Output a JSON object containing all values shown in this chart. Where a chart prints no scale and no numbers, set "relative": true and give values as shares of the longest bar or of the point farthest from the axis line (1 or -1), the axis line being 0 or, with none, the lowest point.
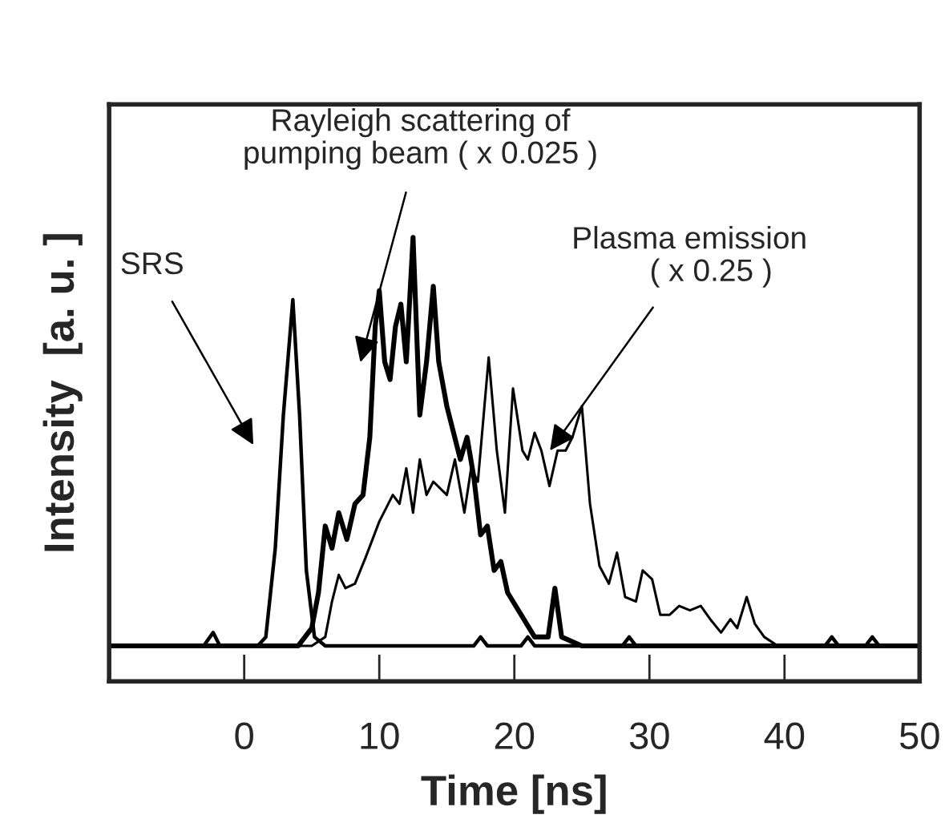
{
  "chart_data": {
    "type": "line",
    "xlabel": "Time [ns]",
    "ylabel": "Intensity  [a. u. ]",
    "relative": true,
    "xlim": [
      -10,
      50
    ],
    "xticks": [
      0,
      10,
      20,
      30,
      40,
      50
    ],
    "grid": false,
    "legend": false,
    "marker": "none",
    "line_style": "solid",
    "series": [
      {
        "color": "#000000",
        "x": [
          -10,
          -3,
          -2.3,
          -1.8,
          1,
          1.6,
          2.3,
          2.9,
          3.6,
          4.1,
          4.6,
          5.2,
          6,
          17,
          17.5,
          18,
          20.5,
          21,
          21.5,
          28,
          28.5,
          29,
          43,
          43.5,
          44,
          46,
          46.5,
          47,
          50
        ],
        "values": [
          0.08,
          0.08,
          0.11,
          0.08,
          0.08,
          0.1,
          0.3,
          0.6,
          0.86,
          0.6,
          0.25,
          0.1,
          0.08,
          0.08,
          0.1,
          0.08,
          0.08,
          0.1,
          0.08,
          0.08,
          0.1,
          0.08,
          0.08,
          0.1,
          0.08,
          0.08,
          0.1,
          0.08,
          0.08
        ]
      },
      {
        "color": "#000000",
        "x": [
          -10,
          -5,
          0,
          4,
          5,
          5.5,
          6,
          6.5,
          7,
          7.6,
          8.2,
          8.8,
          9.3,
          9.7,
          10,
          10.4,
          10.8,
          11.2,
          11.6,
          12,
          12.5,
          13,
          13.5,
          14,
          14.4,
          15,
          15.5,
          16,
          16.5,
          17,
          17.5,
          18,
          18.5,
          19,
          19.5,
          20.5,
          21.5,
          22.5,
          23,
          23.5,
          25,
          50
        ],
        "values": [
          0.08,
          0.08,
          0.08,
          0.08,
          0.12,
          0.2,
          0.35,
          0.3,
          0.38,
          0.32,
          0.4,
          0.42,
          0.55,
          0.8,
          0.88,
          0.72,
          0.68,
          0.8,
          0.85,
          0.72,
          1.0,
          0.6,
          0.72,
          0.89,
          0.72,
          0.62,
          0.56,
          0.5,
          0.55,
          0.46,
          0.33,
          0.35,
          0.25,
          0.27,
          0.2,
          0.15,
          0.1,
          0.1,
          0.21,
          0.1,
          0.08,
          0.08
        ]
      },
      {
        "color": "#000000",
        "x": [
          -10,
          5,
          6,
          6.5,
          7,
          7.5,
          8.2,
          9,
          10,
          11,
          11.5,
          12,
          12.5,
          13,
          13.5,
          14,
          15,
          15.6,
          16.3,
          16.8,
          17.3,
          18.1,
          18.7,
          19.3,
          19.9,
          20.6,
          21,
          21.5,
          22,
          22.6,
          23.2,
          23.8,
          24.3,
          25,
          25.6,
          26.3,
          27,
          27.6,
          28.2,
          29,
          29.5,
          30.2,
          30.8,
          31.5,
          32.2,
          33,
          33.8,
          34.5,
          35.3,
          36,
          36.5,
          37.2,
          37.8,
          38.5,
          39.5,
          50
        ],
        "values": [
          0.08,
          0.08,
          0.1,
          0.18,
          0.24,
          0.21,
          0.22,
          0.28,
          0.36,
          0.42,
          0.4,
          0.48,
          0.38,
          0.5,
          0.42,
          0.45,
          0.42,
          0.5,
          0.38,
          0.48,
          0.45,
          0.73,
          0.52,
          0.38,
          0.66,
          0.52,
          0.5,
          0.56,
          0.52,
          0.44,
          0.52,
          0.52,
          0.55,
          0.62,
          0.4,
          0.26,
          0.22,
          0.29,
          0.19,
          0.18,
          0.25,
          0.23,
          0.15,
          0.15,
          0.17,
          0.16,
          0.17,
          0.14,
          0.11,
          0.14,
          0.12,
          0.19,
          0.13,
          0.1,
          0.08,
          0.08
        ]
      }
    ],
    "annotations": [
      "SRS",
      "Rayleigh scattering of\npumping beam ( x 0.025 )",
      "Plasma emission\n     ( x 0.25 )"
    ]
  }
}
